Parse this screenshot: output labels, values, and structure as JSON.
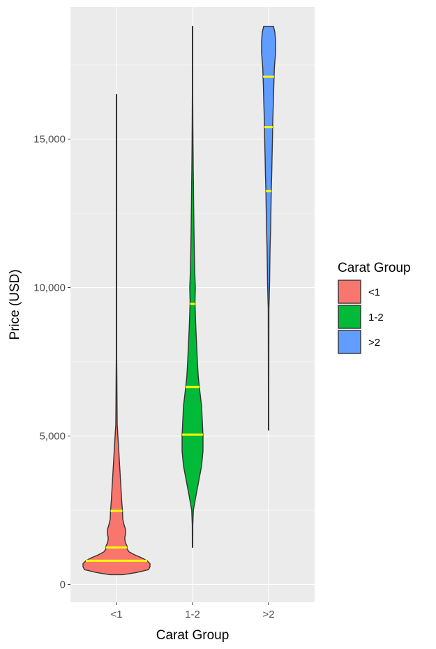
{
  "chart_data": {
    "type": "violin",
    "xlabel": "Carat Group",
    "ylabel": "Price (USD)",
    "ylim": [
      -600,
      19450
    ],
    "yticks": [
      0,
      5000,
      10000,
      15000
    ],
    "ytick_labels": [
      "0",
      "5,000",
      "10,000",
      "15,000"
    ],
    "grid": true,
    "legend": {
      "title": "Carat Group",
      "position": "right",
      "entries": [
        "<1",
        "1-2",
        ">2"
      ]
    },
    "quantile_line_color": "#FFFF00",
    "categories": [
      "<1",
      "1-2",
      ">2"
    ],
    "series": [
      {
        "name": "<1",
        "color": "#F8766D",
        "min": 330,
        "max": 16500,
        "quantiles": [
          800,
          1250,
          2480
        ],
        "density": [
          [
            330,
            0.09
          ],
          [
            400,
            0.28
          ],
          [
            500,
            0.46
          ],
          [
            600,
            0.48
          ],
          [
            700,
            0.48
          ],
          [
            800,
            0.44
          ],
          [
            900,
            0.36
          ],
          [
            1000,
            0.26
          ],
          [
            1100,
            0.18
          ],
          [
            1200,
            0.15
          ],
          [
            1300,
            0.15
          ],
          [
            1400,
            0.13
          ],
          [
            1500,
            0.12
          ],
          [
            1600,
            0.12
          ],
          [
            1700,
            0.13
          ],
          [
            1850,
            0.13
          ],
          [
            2000,
            0.11
          ],
          [
            2200,
            0.09
          ],
          [
            2500,
            0.085
          ],
          [
            2800,
            0.075
          ],
          [
            3200,
            0.065
          ],
          [
            3600,
            0.055
          ],
          [
            4000,
            0.045
          ],
          [
            4500,
            0.033
          ],
          [
            5000,
            0.02
          ],
          [
            5400,
            0.01
          ],
          [
            6000,
            0.008
          ],
          [
            7400,
            0.004
          ],
          [
            7600,
            0.003
          ],
          [
            10000,
            0.003
          ],
          [
            16500,
            0.003
          ]
        ]
      },
      {
        "name": "1-2",
        "color": "#00BA38",
        "min": 1250,
        "max": 18800,
        "quantiles": [
          5050,
          6650,
          9450
        ],
        "density": [
          [
            1250,
            0.003
          ],
          [
            2000,
            0.004
          ],
          [
            2500,
            0.012
          ],
          [
            3000,
            0.05
          ],
          [
            3500,
            0.09
          ],
          [
            4000,
            0.13
          ],
          [
            4500,
            0.15
          ],
          [
            5000,
            0.15
          ],
          [
            5500,
            0.14
          ],
          [
            6000,
            0.13
          ],
          [
            6500,
            0.105
          ],
          [
            7000,
            0.082
          ],
          [
            7500,
            0.07
          ],
          [
            8000,
            0.06
          ],
          [
            8500,
            0.05
          ],
          [
            9000,
            0.042
          ],
          [
            9500,
            0.035
          ],
          [
            10000,
            0.04
          ],
          [
            10500,
            0.032
          ],
          [
            11000,
            0.027
          ],
          [
            12000,
            0.02
          ],
          [
            13000,
            0.015
          ],
          [
            13500,
            0.013
          ],
          [
            14000,
            0.01
          ],
          [
            14800,
            0.007
          ],
          [
            15500,
            0.005
          ],
          [
            16500,
            0.003
          ],
          [
            18800,
            0.003
          ]
        ]
      },
      {
        "name": ">2",
        "color": "#619CFF",
        "min": 5200,
        "max": 18800,
        "quantiles": [
          13250,
          15400,
          17100
        ],
        "density": [
          [
            5200,
            0.003
          ],
          [
            6500,
            0.003
          ],
          [
            8000,
            0.004
          ],
          [
            9300,
            0.005
          ],
          [
            9700,
            0.01
          ],
          [
            10200,
            0.015
          ],
          [
            10800,
            0.018
          ],
          [
            11400,
            0.022
          ],
          [
            12000,
            0.03
          ],
          [
            12600,
            0.034
          ],
          [
            13200,
            0.038
          ],
          [
            13800,
            0.045
          ],
          [
            14400,
            0.05
          ],
          [
            15000,
            0.056
          ],
          [
            15600,
            0.06
          ],
          [
            16200,
            0.068
          ],
          [
            16800,
            0.075
          ],
          [
            17400,
            0.083
          ],
          [
            17900,
            0.1
          ],
          [
            18300,
            0.1
          ],
          [
            18600,
            0.09
          ],
          [
            18800,
            0.07
          ]
        ]
      }
    ]
  }
}
